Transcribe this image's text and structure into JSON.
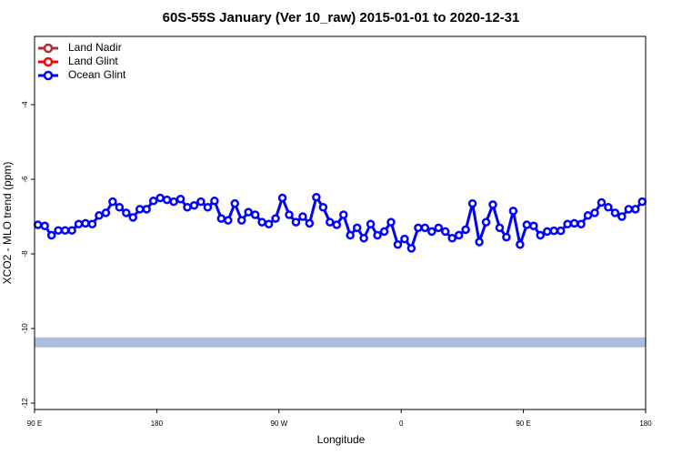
{
  "chart_data": {
    "type": "line",
    "title": "60S-55S January (Ver 10_raw)   2015-01-01 to 2020-12-31",
    "xlabel": "Longitude",
    "ylabel": "XCO2 - MLO trend (ppm)",
    "xlim": [
      90,
      540
    ],
    "ylim": [
      -12.17,
      -2.17
    ],
    "xticks": [
      {
        "value": 90,
        "label": "90 E"
      },
      180,
      {
        "value": 270,
        "label": "90 W"
      },
      {
        "value": 360,
        "label": "0"
      },
      {
        "value": 450,
        "label": "90 E"
      },
      {
        "value": 540,
        "label": "180"
      }
    ],
    "yticks": [
      -4,
      -6,
      -8,
      -10,
      -12
    ],
    "legend": "top-left",
    "band": {
      "value": -10.37,
      "color": "#a9bfe0"
    },
    "series": [
      {
        "name": "Land Nadir",
        "color": "#a83232",
        "x": [],
        "values": []
      },
      {
        "name": "Land Glint",
        "color": "#ff0000",
        "x": [],
        "values": []
      },
      {
        "name": "Ocean Glint",
        "color": "#0000ff",
        "x": [
          92.5,
          97.5,
          102.5,
          107.5,
          112.5,
          117.5,
          122.5,
          127.5,
          132.5,
          137.5,
          142.5,
          147.5,
          152.5,
          157.5,
          162.5,
          167.5,
          172.5,
          177.5,
          182.5,
          187.5,
          192.5,
          197.5,
          202.5,
          207.5,
          212.5,
          217.5,
          222.5,
          227.5,
          232.5,
          237.5,
          242.5,
          247.5,
          252.5,
          257.5,
          262.5,
          267.5,
          272.5,
          277.5,
          282.5,
          287.5,
          292.5,
          297.5,
          302.5,
          307.5,
          312.5,
          317.5,
          322.5,
          327.5,
          332.5,
          337.5,
          342.5,
          347.5,
          352.5,
          357.5,
          362.5,
          367.5,
          372.5,
          377.5,
          382.5,
          387.5,
          392.5,
          397.5,
          402.5,
          407.5,
          412.5,
          417.5,
          422.5,
          427.5,
          432.5,
          437.5,
          442.5,
          447.5,
          452.5,
          457.5,
          462.5,
          467.5,
          472.5,
          477.5,
          482.5,
          487.5,
          492.5,
          497.5,
          502.5,
          507.5,
          512.5,
          517.5,
          522.5,
          527.5,
          532.5,
          537.5
        ],
        "values": [
          -7.22,
          -7.25,
          -7.5,
          -7.37,
          -7.37,
          -7.37,
          -7.2,
          -7.18,
          -7.2,
          -6.97,
          -6.9,
          -6.6,
          -6.75,
          -6.9,
          -7.02,
          -6.8,
          -6.8,
          -6.58,
          -6.5,
          -6.55,
          -6.6,
          -6.53,
          -6.75,
          -6.7,
          -6.6,
          -6.75,
          -6.58,
          -7.05,
          -7.1,
          -6.65,
          -7.1,
          -6.88,
          -6.95,
          -7.15,
          -7.2,
          -7.05,
          -6.5,
          -6.95,
          -7.15,
          -7.0,
          -7.18,
          -6.48,
          -6.75,
          -7.15,
          -7.22,
          -6.95,
          -7.5,
          -7.3,
          -7.58,
          -7.2,
          -7.5,
          -7.4,
          -7.15,
          -7.75,
          -7.6,
          -7.85,
          -7.3,
          -7.3,
          -7.4,
          -7.3,
          -7.4,
          -7.58,
          -7.5,
          -7.35,
          -6.65,
          -7.68,
          -7.15,
          -6.68,
          -7.3,
          -7.55,
          -6.85,
          -7.75,
          -7.22,
          -7.25,
          -7.5,
          -7.4,
          -7.38,
          -7.38,
          -7.2,
          -7.18,
          -7.2,
          -6.97,
          -6.9,
          -6.62,
          -6.75,
          -6.9,
          -7.0,
          -6.8,
          -6.8,
          -6.6
        ]
      }
    ]
  }
}
